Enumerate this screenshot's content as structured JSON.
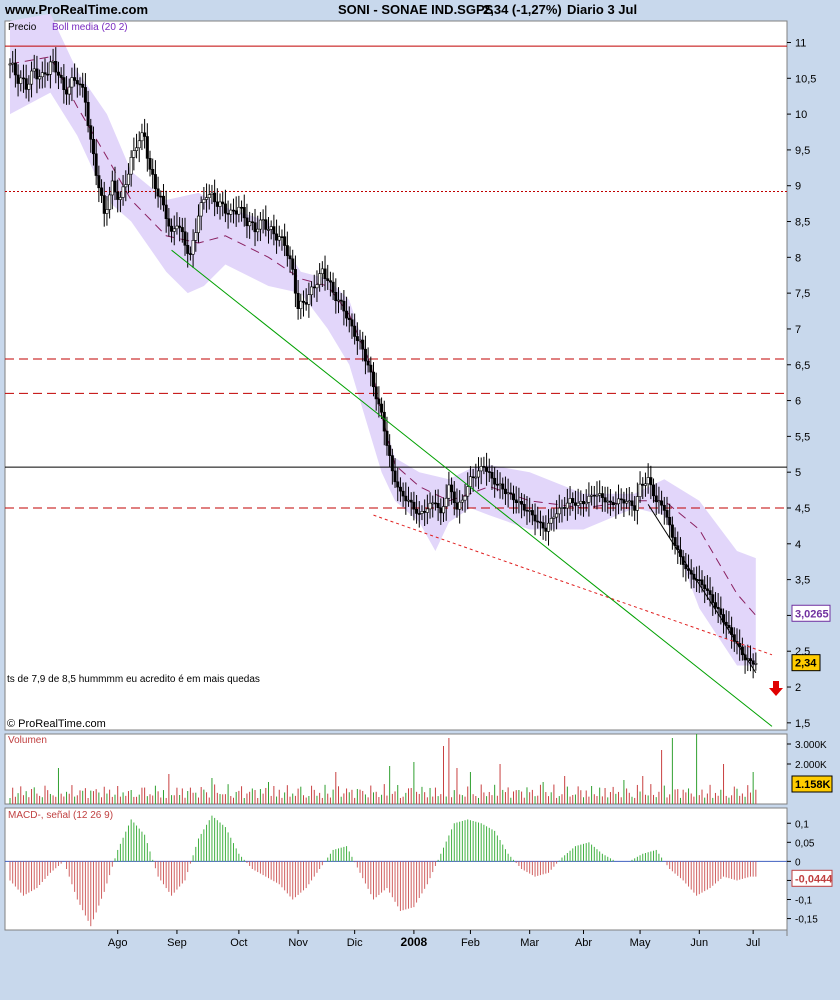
{
  "header": {
    "site": "www.ProRealTime.com",
    "instrument": "SONI - SONAE IND.SGPS",
    "quote": "2,34 (-1,27%)",
    "period": "Diario  3 Jul"
  },
  "chart_data": [
    {
      "type": "candlestick",
      "panel": "price",
      "legend": [
        "Precio",
        "Boll media (20 2)"
      ],
      "y_ticks": [
        "11",
        "10,5",
        "10",
        "9,5",
        "9",
        "8,5",
        "8",
        "7,5",
        "7",
        "6,5",
        "6",
        "5,5",
        "5",
        "4,5",
        "4",
        "3,5",
        "3",
        "2,5",
        "2",
        "1,5"
      ],
      "ylim": [
        1.4,
        11.3
      ],
      "x_labels": [
        "Ago",
        "Sep",
        "Oct",
        "Nov",
        "Dic",
        "2008",
        "Feb",
        "Mar",
        "Abr",
        "May",
        "Jun",
        "Jul"
      ],
      "x_label_days": [
        40,
        62,
        85,
        107,
        128,
        150,
        171,
        193,
        213,
        234,
        256,
        276
      ],
      "bollinger_upper_days": [
        0,
        15,
        25,
        36,
        45,
        58,
        70,
        80,
        96,
        108,
        118,
        126,
        134,
        138,
        143,
        152,
        163,
        171,
        178,
        193,
        213,
        232,
        243,
        256,
        270,
        277
      ],
      "bollinger_upper_values": [
        11.3,
        11.4,
        10.6,
        10.0,
        9.2,
        8.8,
        8.9,
        8.7,
        8.5,
        7.8,
        7.7,
        7.4,
        6.5,
        5.8,
        5.2,
        5.0,
        4.9,
        5.05,
        5.1,
        5.0,
        4.7,
        4.7,
        4.9,
        4.6,
        3.9,
        3.8
      ],
      "bollinger_lower_days": [
        0,
        15,
        25,
        36,
        45,
        58,
        66,
        72,
        80,
        96,
        108,
        118,
        126,
        134,
        138,
        143,
        152,
        158,
        163,
        171,
        178,
        193,
        213,
        232,
        243,
        256,
        270,
        277
      ],
      "bollinger_lower_values": [
        10.0,
        10.3,
        9.7,
        8.8,
        8.5,
        7.8,
        7.5,
        7.6,
        7.9,
        7.6,
        7.5,
        7.0,
        6.5,
        5.5,
        5.0,
        4.6,
        4.3,
        3.9,
        4.3,
        4.5,
        4.4,
        4.2,
        4.2,
        4.5,
        4.4,
        3.1,
        2.3,
        2.3
      ],
      "bollinger_middle_days": [
        0,
        15,
        25,
        36,
        45,
        58,
        70,
        80,
        96,
        108,
        118,
        126,
        134,
        138,
        143,
        152,
        163,
        171,
        178,
        193,
        213,
        232,
        243,
        256,
        270,
        277
      ],
      "bollinger_middle_values": [
        10.7,
        10.8,
        10.1,
        9.4,
        8.8,
        8.3,
        8.2,
        8.3,
        8.0,
        7.7,
        7.6,
        7.2,
        6.5,
        5.8,
        5.1,
        4.8,
        4.6,
        4.7,
        4.8,
        4.6,
        4.5,
        4.6,
        4.6,
        4.2,
        3.3,
        3.0
      ],
      "trend_lines": [
        {
          "color": "#00a000",
          "dash": "none",
          "points": [
            [
              60,
              8.1
            ],
            [
              283,
              1.45
            ]
          ]
        },
        {
          "color": "#e02020",
          "dash": "3,3",
          "points": [
            [
              135,
              4.4
            ],
            [
              283,
              2.45
            ]
          ]
        },
        {
          "color": "#000000",
          "dash": "none",
          "points": [
            [
              237,
              4.55
            ],
            [
              277,
              2.2
            ]
          ]
        }
      ],
      "horizontal_lines": [
        {
          "value": 10.95,
          "color": "#c00000",
          "dash": "none"
        },
        {
          "value": 8.92,
          "color": "#c00000",
          "dash": "2,2"
        },
        {
          "value": 6.58,
          "color": "#c00000",
          "dash": "9,5"
        },
        {
          "value": 6.1,
          "color": "#c00000",
          "dash": "9,5"
        },
        {
          "value": 5.07,
          "color": "#000000",
          "dash": "none"
        },
        {
          "value": 4.5,
          "color": "#c00000",
          "dash": "9,5"
        }
      ],
      "annotation": "ts de 7,9 de 8,5 hummmm eu acredito é em mais quedas",
      "copyright": "© ProRealTime.com",
      "current_price_label": "2,34",
      "middle_band_label": "3,0265",
      "close_days": [
        0,
        3,
        6,
        9,
        12,
        15,
        18,
        20,
        22,
        25,
        28,
        30,
        33,
        35,
        38,
        41,
        44,
        47,
        50,
        52,
        55,
        58,
        60,
        62,
        65,
        67,
        70,
        73,
        76,
        79,
        82,
        85,
        88,
        91,
        94,
        96,
        99,
        102,
        105,
        107,
        110,
        113,
        116,
        118,
        120,
        122,
        125,
        127,
        130,
        133,
        135,
        138,
        140,
        142,
        145,
        148,
        150,
        152,
        155,
        158,
        160,
        163,
        166,
        168,
        171,
        174,
        176,
        179,
        182,
        185,
        188,
        191,
        194,
        196,
        199,
        202,
        205,
        208,
        211,
        214,
        217,
        220,
        223,
        226,
        229,
        232,
        234,
        237,
        240,
        243,
        246,
        249,
        252,
        255,
        258,
        261,
        264,
        267,
        270,
        273,
        275,
        277
      ],
      "close_values": [
        10.7,
        10.5,
        10.4,
        10.6,
        10.5,
        10.7,
        10.6,
        10.3,
        10.4,
        10.5,
        10.2,
        9.6,
        9.0,
        8.6,
        9.0,
        8.8,
        9.2,
        9.6,
        9.7,
        9.2,
        8.9,
        8.6,
        8.3,
        8.5,
        8.2,
        8.0,
        8.6,
        8.9,
        8.8,
        8.7,
        8.6,
        8.7,
        8.5,
        8.4,
        8.5,
        8.4,
        8.3,
        8.2,
        7.8,
        7.3,
        7.4,
        7.6,
        7.8,
        7.7,
        7.5,
        7.4,
        7.2,
        7.0,
        6.8,
        6.5,
        6.2,
        5.8,
        5.4,
        5.0,
        4.7,
        4.6,
        4.5,
        4.4,
        4.5,
        4.6,
        4.4,
        4.8,
        4.5,
        4.6,
        4.9,
        5.0,
        5.1,
        4.9,
        4.8,
        4.7,
        4.6,
        4.5,
        4.4,
        4.3,
        4.2,
        4.4,
        4.5,
        4.6,
        4.55,
        4.6,
        4.7,
        4.65,
        4.55,
        4.6,
        4.6,
        4.5,
        4.8,
        4.9,
        4.6,
        4.5,
        4.1,
        3.8,
        3.6,
        3.5,
        3.4,
        3.2,
        3.0,
        2.8,
        2.6,
        2.4,
        2.35,
        2.34
      ]
    },
    {
      "type": "bar",
      "panel": "volume",
      "legend": "Volumen",
      "y_ticks": [
        "3.000K",
        "2.000K"
      ],
      "ylim": [
        0,
        3500
      ],
      "current_value_label": "1.158K",
      "days": [
        18,
        40,
        45,
        59,
        75,
        96,
        121,
        141,
        150,
        161,
        163,
        166,
        171,
        182,
        198,
        206,
        228,
        235,
        242,
        246,
        255,
        265,
        276
      ],
      "values": [
        1800,
        900,
        700,
        1500,
        1300,
        1100,
        1600,
        1900,
        2100,
        2900,
        3300,
        1800,
        1600,
        2000,
        1100,
        1400,
        1200,
        1400,
        2700,
        3300,
        3500,
        2000,
        1600
      ]
    },
    {
      "type": "bar",
      "panel": "macd",
      "legend": "MACD-, señal (12 26 9)",
      "y_ticks": [
        "0,1",
        "0,05",
        "0",
        "-0,05",
        "-0,1",
        "-0,15"
      ],
      "ylim": [
        -0.18,
        0.14
      ],
      "current_value_label": "-0,0444",
      "days": [
        0,
        5,
        10,
        15,
        20,
        25,
        30,
        35,
        40,
        45,
        50,
        55,
        60,
        65,
        70,
        75,
        80,
        85,
        90,
        95,
        100,
        105,
        110,
        115,
        120,
        125,
        130,
        135,
        140,
        145,
        150,
        155,
        160,
        165,
        170,
        175,
        180,
        185,
        190,
        195,
        200,
        205,
        210,
        215,
        220,
        225,
        230,
        235,
        240,
        245,
        250,
        255,
        260,
        265,
        270,
        275
      ],
      "values": [
        -0.05,
        -0.09,
        -0.07,
        -0.03,
        0.0,
        -0.1,
        -0.17,
        -0.08,
        0.03,
        0.11,
        0.07,
        -0.04,
        -0.09,
        -0.05,
        0.06,
        0.12,
        0.09,
        0.02,
        -0.02,
        -0.04,
        -0.06,
        -0.1,
        -0.07,
        -0.02,
        0.03,
        0.04,
        -0.03,
        -0.1,
        -0.07,
        -0.13,
        -0.12,
        -0.06,
        0.02,
        0.1,
        0.11,
        0.1,
        0.08,
        0.02,
        -0.02,
        -0.04,
        -0.03,
        0.01,
        0.04,
        0.05,
        0.02,
        0.0,
        0.0,
        0.02,
        0.03,
        -0.02,
        -0.05,
        -0.09,
        -0.07,
        -0.04,
        -0.05,
        -0.04
      ]
    }
  ]
}
